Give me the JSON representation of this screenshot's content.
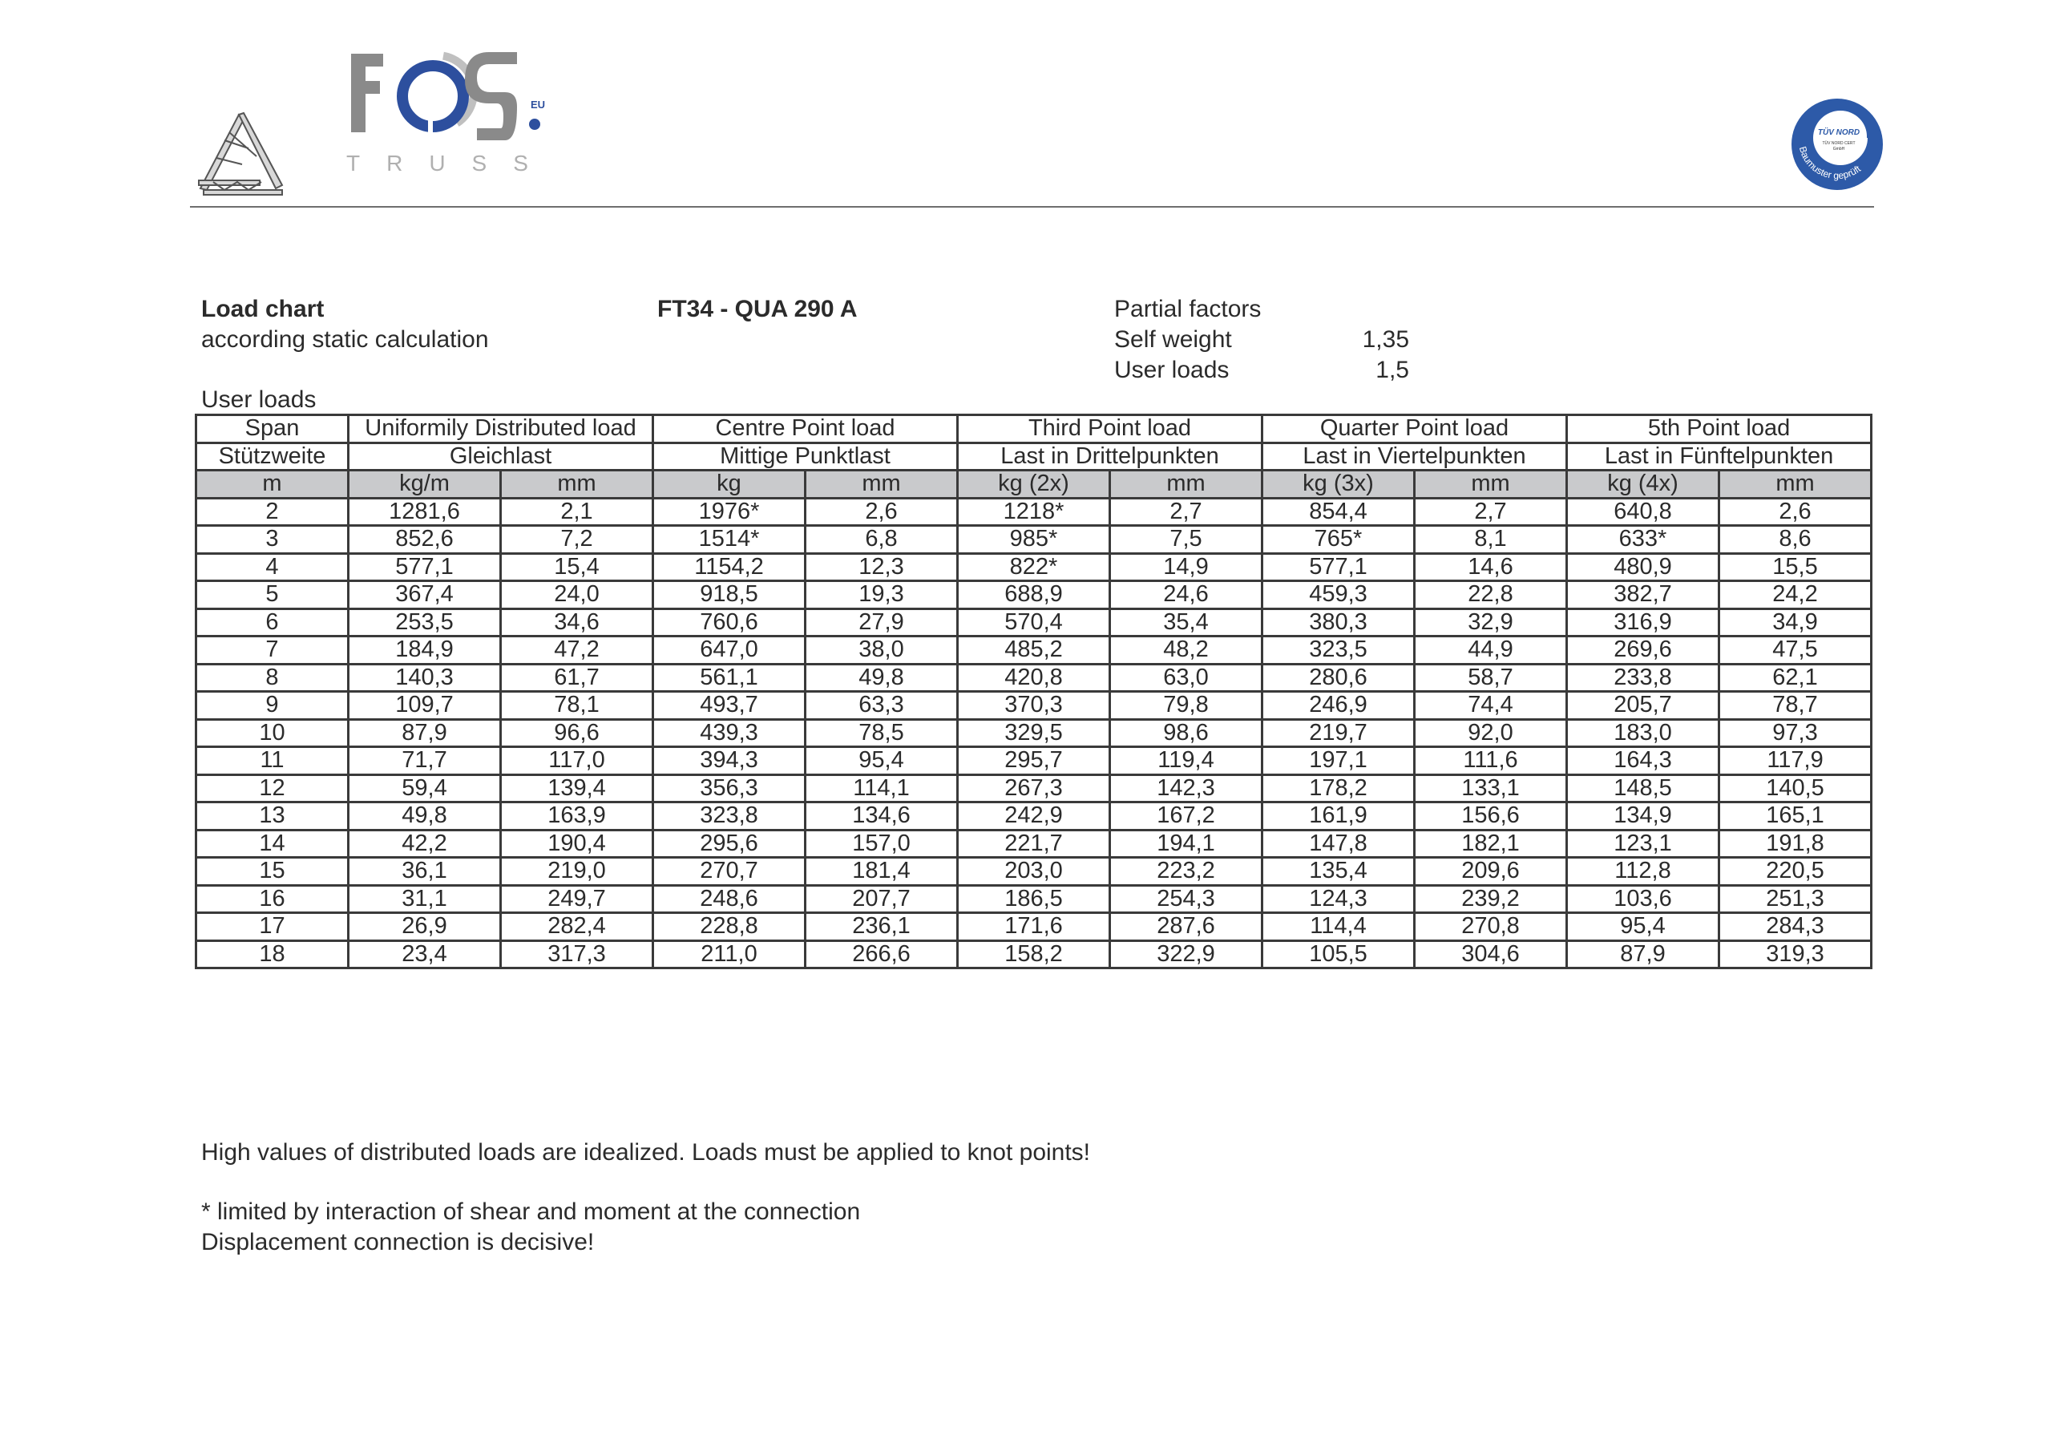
{
  "header": {
    "brand": "FOS",
    "brand_sub": "TRUSS",
    "brand_badge": "EU",
    "seal_title": "TÜV NORD",
    "seal_sub1": "TÜV NORD CERT",
    "seal_sub2": "GmbH",
    "seal_ring": "Baumuster geprüft",
    "colors": {
      "brand_gray": "#8a8a8a",
      "brand_blue": "#2d4f9e",
      "light_gray": "#c0c0c0"
    }
  },
  "intro": {
    "title": "Load chart",
    "subtitle": "according static calculation",
    "product": "FT34 - QUA 290 A",
    "partial_factors_label": "Partial factors",
    "factors": [
      {
        "label": "Self weight",
        "value": "1,35"
      },
      {
        "label": "User loads",
        "value": "1,5"
      }
    ],
    "section_label": "User loads"
  },
  "table": {
    "groups_en": [
      "Span",
      "Uniformily Distributed load",
      "Centre Point load",
      "Third Point load",
      "Quarter Point load",
      "5th Point load"
    ],
    "groups_de": [
      "Stützweite",
      "Gleichlast",
      "Mittige Punktlast",
      "Last in Drittelpunkten",
      "Last in Viertelpunkten",
      "Last in Fünftelpunkten"
    ],
    "units": [
      "m",
      "kg/m",
      "mm",
      "kg",
      "mm",
      "kg (2x)",
      "mm",
      "kg (3x)",
      "mm",
      "kg (4x)",
      "mm"
    ],
    "rows": [
      [
        "2",
        "1281,6",
        "2,1",
        "1976*",
        "2,6",
        "1218*",
        "2,7",
        "854,4",
        "2,7",
        "640,8",
        "2,6"
      ],
      [
        "3",
        "852,6",
        "7,2",
        "1514*",
        "6,8",
        "985*",
        "7,5",
        "765*",
        "8,1",
        "633*",
        "8,6"
      ],
      [
        "4",
        "577,1",
        "15,4",
        "1154,2",
        "12,3",
        "822*",
        "14,9",
        "577,1",
        "14,6",
        "480,9",
        "15,5"
      ],
      [
        "5",
        "367,4",
        "24,0",
        "918,5",
        "19,3",
        "688,9",
        "24,6",
        "459,3",
        "22,8",
        "382,7",
        "24,2"
      ],
      [
        "6",
        "253,5",
        "34,6",
        "760,6",
        "27,9",
        "570,4",
        "35,4",
        "380,3",
        "32,9",
        "316,9",
        "34,9"
      ],
      [
        "7",
        "184,9",
        "47,2",
        "647,0",
        "38,0",
        "485,2",
        "48,2",
        "323,5",
        "44,9",
        "269,6",
        "47,5"
      ],
      [
        "8",
        "140,3",
        "61,7",
        "561,1",
        "49,8",
        "420,8",
        "63,0",
        "280,6",
        "58,7",
        "233,8",
        "62,1"
      ],
      [
        "9",
        "109,7",
        "78,1",
        "493,7",
        "63,3",
        "370,3",
        "79,8",
        "246,9",
        "74,4",
        "205,7",
        "78,7"
      ],
      [
        "10",
        "87,9",
        "96,6",
        "439,3",
        "78,5",
        "329,5",
        "98,6",
        "219,7",
        "92,0",
        "183,0",
        "97,3"
      ],
      [
        "11",
        "71,7",
        "117,0",
        "394,3",
        "95,4",
        "295,7",
        "119,4",
        "197,1",
        "111,6",
        "164,3",
        "117,9"
      ],
      [
        "12",
        "59,4",
        "139,4",
        "356,3",
        "114,1",
        "267,3",
        "142,3",
        "178,2",
        "133,1",
        "148,5",
        "140,5"
      ],
      [
        "13",
        "49,8",
        "163,9",
        "323,8",
        "134,6",
        "242,9",
        "167,2",
        "161,9",
        "156,6",
        "134,9",
        "165,1"
      ],
      [
        "14",
        "42,2",
        "190,4",
        "295,6",
        "157,0",
        "221,7",
        "194,1",
        "147,8",
        "182,1",
        "123,1",
        "191,8"
      ],
      [
        "15",
        "36,1",
        "219,0",
        "270,7",
        "181,4",
        "203,0",
        "223,2",
        "135,4",
        "209,6",
        "112,8",
        "220,5"
      ],
      [
        "16",
        "31,1",
        "249,7",
        "248,6",
        "207,7",
        "186,5",
        "254,3",
        "124,3",
        "239,2",
        "103,6",
        "251,3"
      ],
      [
        "17",
        "26,9",
        "282,4",
        "228,8",
        "236,1",
        "171,6",
        "287,6",
        "114,4",
        "270,8",
        "95,4",
        "284,3"
      ],
      [
        "18",
        "23,4",
        "317,3",
        "211,0",
        "266,6",
        "158,2",
        "322,9",
        "105,5",
        "304,6",
        "87,9",
        "319,3"
      ]
    ]
  },
  "notes": {
    "idealized": "High values of distributed loads are idealized. Loads must be applied to knot points!",
    "limited": "* limited by interaction of shear and moment at the connection",
    "decisive": "Displacement connection is decisive!"
  }
}
